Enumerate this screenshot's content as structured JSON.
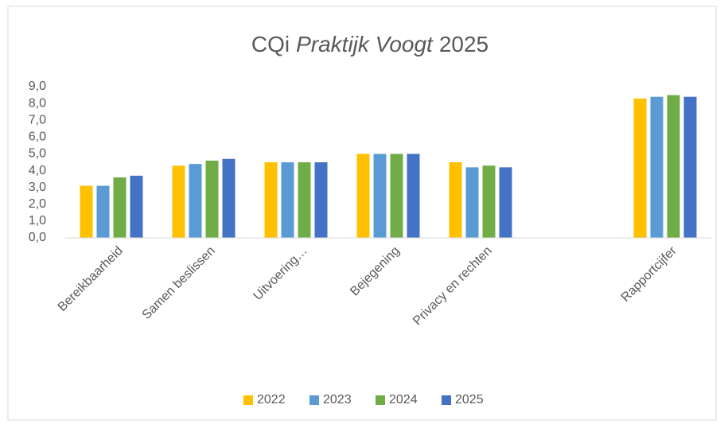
{
  "chart_data": {
    "type": "bar",
    "title_parts": [
      "CQi",
      "Praktijk Voogt",
      "2025"
    ],
    "categories": [
      "Bereikbaarheid",
      "Samen beslissen",
      "Uitvoering…",
      "Bejegening",
      "Privacy en rechten",
      null,
      "Rapportcijfer"
    ],
    "series": [
      {
        "name": "2022",
        "color": "#ffc000",
        "values": [
          3.1,
          4.3,
          4.5,
          5.0,
          4.5,
          null,
          8.3
        ]
      },
      {
        "name": "2023",
        "color": "#5b9bd5",
        "values": [
          3.1,
          4.4,
          4.5,
          5.0,
          4.2,
          null,
          8.4
        ]
      },
      {
        "name": "2024",
        "color": "#70ad47",
        "values": [
          3.6,
          4.6,
          4.5,
          5.0,
          4.3,
          null,
          8.5
        ]
      },
      {
        "name": "2025",
        "color": "#4472c4",
        "values": [
          3.7,
          4.7,
          4.5,
          5.0,
          4.2,
          null,
          8.4
        ]
      }
    ],
    "ylim": [
      0,
      9
    ],
    "yticks": [
      {
        "value": 0,
        "label": "0,0"
      },
      {
        "value": 1,
        "label": "1,0"
      },
      {
        "value": 2,
        "label": "2,0"
      },
      {
        "value": 3,
        "label": "3,0"
      },
      {
        "value": 4,
        "label": "4,0"
      },
      {
        "value": 5,
        "label": "5,0"
      },
      {
        "value": 6,
        "label": "6,0"
      },
      {
        "value": 7,
        "label": "7,0"
      },
      {
        "value": 8,
        "label": "8,0"
      },
      {
        "value": 9,
        "label": "9,0"
      }
    ],
    "grid": false,
    "legend": "bottom"
  }
}
